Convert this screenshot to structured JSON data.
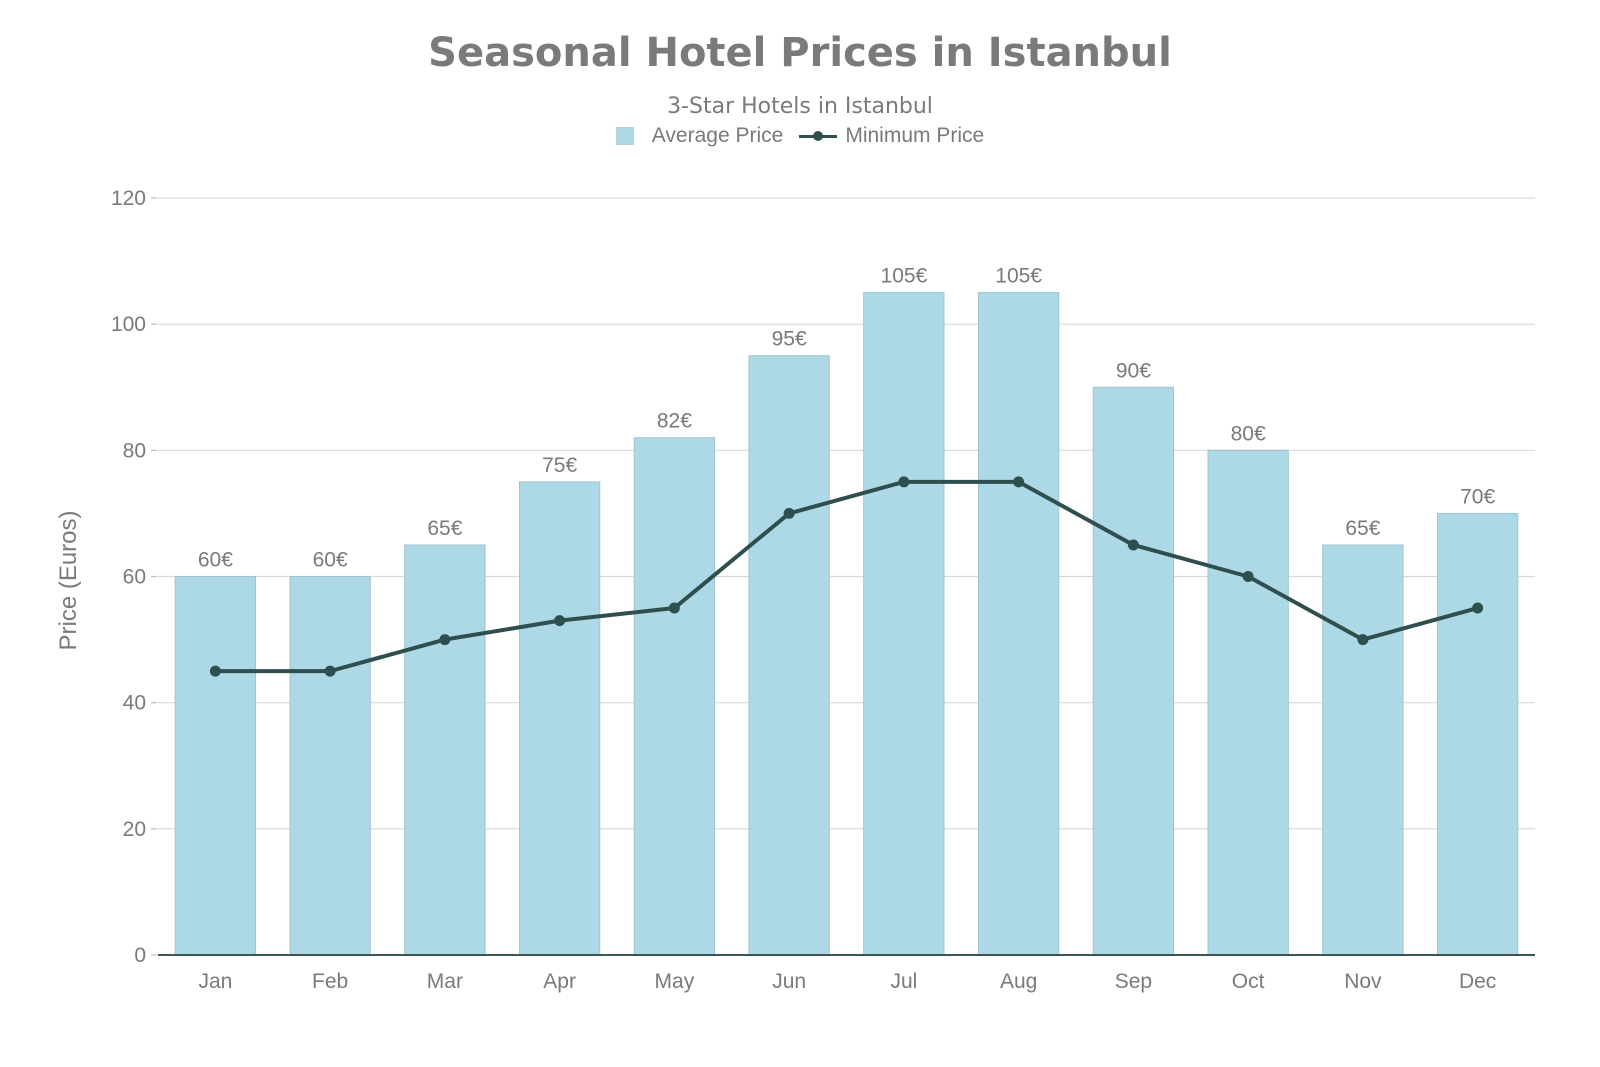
{
  "chart_data": {
    "type": "bar",
    "title": "Seasonal Hotel Prices in Istanbul",
    "subtitle": "3-Star Hotels in Istanbul",
    "ylabel": "Price (Euros)",
    "xlabel": "",
    "ylim": [
      0,
      120
    ],
    "yticks": [
      "0",
      "20",
      "40",
      "60",
      "80",
      "100",
      "120"
    ],
    "categories": [
      "Jan",
      "Feb",
      "Mar",
      "Apr",
      "May",
      "Jun",
      "Jul",
      "Aug",
      "Sep",
      "Oct",
      "Nov",
      "Dec"
    ],
    "series": [
      {
        "name": "Average Price",
        "type": "bar",
        "color": "#add8e6",
        "values": [
          60,
          60,
          65,
          75,
          82,
          95,
          105,
          105,
          90,
          80,
          65,
          70
        ],
        "labels": [
          "60€",
          "60€",
          "65€",
          "75€",
          "82€",
          "95€",
          "105€",
          "105€",
          "90€",
          "80€",
          "65€",
          "70€"
        ]
      },
      {
        "name": "Minimum Price",
        "type": "line",
        "color": "#2f4f4f",
        "values": [
          45,
          45,
          50,
          53,
          55,
          70,
          75,
          75,
          65,
          60,
          50,
          55
        ]
      }
    ],
    "grid": true,
    "legend_position": "top-center"
  }
}
